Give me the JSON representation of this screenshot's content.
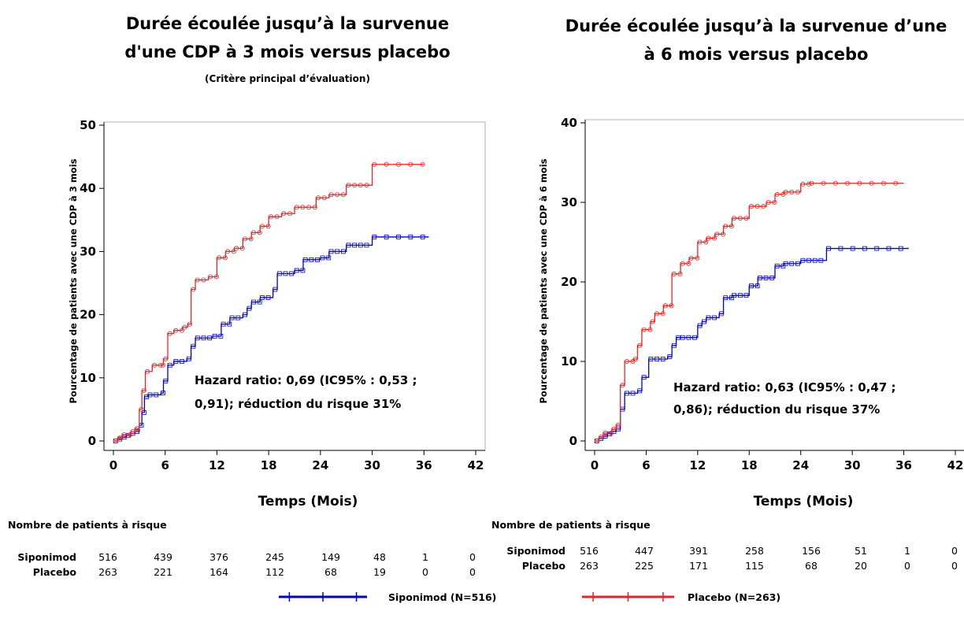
{
  "chart_data": [
    {
      "type": "line",
      "title_lines": [
        "Durée écoulée jusqu’à la survenue",
        "d'une CDP à 3 mois versus placebo"
      ],
      "subtitle": "(Critère principal d’évaluation)",
      "xlabel": "Temps (Mois)",
      "ylabel": "Pourcentage de patients avec une CDP à 3 mois",
      "xlim": [
        0,
        42
      ],
      "ylim": [
        0,
        50
      ],
      "xticks": [
        0,
        6,
        12,
        18,
        24,
        30,
        36,
        42
      ],
      "yticks": [
        0,
        10,
        20,
        30,
        40,
        50
      ],
      "annotation_lines": [
        "Hazard ratio: 0,69 (IC95% : 0,53 ;",
        "0,91); réduction du risque 31%"
      ],
      "series": [
        {
          "name": "Siponimod",
          "color": "#0000cc",
          "x": [
            0,
            0.5,
            1,
            1.5,
            2,
            2.5,
            3,
            3.3,
            3.6,
            4,
            5.5,
            5.8,
            6.3,
            7,
            8.5,
            9,
            9.5,
            11.5,
            12.5,
            13.5,
            15,
            15.5,
            16,
            17,
            18.5,
            19,
            21,
            22,
            24,
            25,
            27,
            30,
            36.5
          ],
          "y": [
            0,
            0.3,
            0.6,
            0.9,
            1.2,
            1.5,
            2.5,
            4.5,
            7,
            7.3,
            7.6,
            9.5,
            12,
            12.6,
            13,
            15,
            16.3,
            16.6,
            18.5,
            19.5,
            20,
            21,
            22,
            22.7,
            24,
            26.5,
            27,
            28.7,
            29,
            30,
            31,
            32.3,
            32.4
          ]
        },
        {
          "name": "Placebo",
          "color": "#ee2222",
          "x": [
            0,
            0.5,
            1,
            2,
            2.5,
            3,
            3.3,
            3.7,
            4.5,
            5.5,
            5.8,
            6.3,
            7,
            8,
            8.6,
            9,
            9.5,
            11,
            12,
            13,
            14,
            15,
            16,
            17,
            18,
            19.5,
            21,
            23.5,
            25,
            27,
            30,
            36
          ],
          "y": [
            0,
            0.5,
            1,
            1.5,
            2,
            5,
            8,
            11,
            12,
            12,
            13,
            17,
            17.5,
            18,
            18.5,
            24,
            25.5,
            26,
            29,
            30,
            30.5,
            32,
            33,
            34,
            35.5,
            36,
            37,
            38.5,
            39,
            40.5,
            43.8,
            43.8
          ]
        }
      ],
      "risk_table": {
        "title": "Nombre de patients à risque",
        "rows": [
          {
            "name": "Siponimod",
            "values": [
              "516",
              "439",
              "376",
              "245",
              "149",
              "48",
              "1",
              "0"
            ]
          },
          {
            "name": "Placebo",
            "values": [
              "263",
              "221",
              "164",
              "112",
              "68",
              "19",
              "0",
              "0"
            ]
          }
        ]
      }
    },
    {
      "type": "line",
      "title_lines": [
        "Durée écoulée jusqu’à la survenue d’une",
        "à 6 mois versus placebo"
      ],
      "subtitle": "",
      "xlabel": "Temps (Mois)",
      "ylabel": "Pourcentage de patients avec une CDP à 6 mois",
      "xlim": [
        0,
        42
      ],
      "ylim": [
        0,
        40
      ],
      "xticks": [
        0,
        6,
        12,
        18,
        24,
        30,
        36,
        42
      ],
      "yticks": [
        0,
        10,
        20,
        30,
        40
      ],
      "annotation_lines": [
        "Hazard ratio: 0,63 (IC95% : 0,47 ;",
        "0,86); réduction du risque 37%"
      ],
      "series": [
        {
          "name": "Siponimod",
          "color": "#0000cc",
          "x": [
            0,
            0.5,
            1,
            1.5,
            2,
            2.5,
            3,
            3.5,
            5,
            5.5,
            6.3,
            8.5,
            9,
            9.5,
            10,
            12,
            12.5,
            13,
            14.5,
            15,
            16,
            18,
            19,
            21,
            22,
            24,
            27,
            36.5
          ],
          "y": [
            0,
            0.3,
            0.6,
            0.9,
            1.2,
            1.5,
            4,
            6,
            6.3,
            8,
            10.3,
            10.6,
            12,
            13,
            13,
            14.5,
            15,
            15.5,
            16,
            18,
            18.3,
            19.5,
            20.5,
            22,
            22.3,
            22.7,
            24.2,
            24.3
          ]
        },
        {
          "name": "Placebo",
          "color": "#ee2222",
          "x": [
            0,
            0.5,
            1,
            2,
            2.5,
            3,
            3.5,
            4.5,
            5,
            5.5,
            6.5,
            7,
            8,
            9,
            10,
            11,
            12,
            13,
            14,
            15,
            16,
            18,
            20,
            21,
            22,
            24,
            25,
            36
          ],
          "y": [
            0,
            0.5,
            1,
            1.5,
            2,
            7,
            10,
            10.3,
            12,
            14,
            15,
            16,
            17,
            21,
            22.3,
            23,
            25,
            25.5,
            26,
            27,
            28,
            29.5,
            30,
            31,
            31.3,
            32.3,
            32.4,
            32.4
          ]
        }
      ],
      "risk_table": {
        "title": "Nombre de patients à risque",
        "rows": [
          {
            "name": "Siponimod",
            "values": [
              "516",
              "447",
              "391",
              "258",
              "156",
              "51",
              "1",
              "0"
            ]
          },
          {
            "name": "Placebo",
            "values": [
              "263",
              "225",
              "171",
              "115",
              "68",
              "20",
              "0",
              "0"
            ]
          }
        ]
      }
    }
  ],
  "legend": [
    {
      "label": "Siponimod (N=516)",
      "color": "#0000cc"
    },
    {
      "label": "Placebo (N=263)",
      "color": "#ee2222"
    }
  ]
}
